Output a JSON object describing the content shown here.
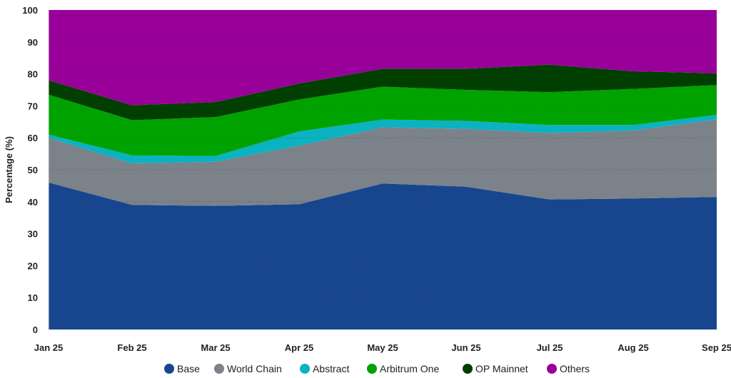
{
  "chart_data": {
    "type": "area",
    "stacked": true,
    "title": "",
    "xlabel": "",
    "ylabel": "Percentage (%)",
    "ylim": [
      0,
      100
    ],
    "yticks": [
      "0",
      "10",
      "20",
      "30",
      "40",
      "50",
      "60",
      "70",
      "80",
      "90",
      "100"
    ],
    "categories": [
      "Jan 25",
      "Feb 25",
      "Mar 25",
      "Apr 25",
      "May 25",
      "Jun 25",
      "Jul 25",
      "Aug 25",
      "Sep 25"
    ],
    "grid": true,
    "legend_position": "bottom",
    "series": [
      {
        "name": "Base",
        "color": "#17468f",
        "values": [
          46,
          39,
          38.7,
          39.2,
          45.7,
          44.7,
          40.7,
          41,
          41.5
        ]
      },
      {
        "name": "World Chain",
        "color": "#7b8289",
        "values": [
          14,
          13,
          13.8,
          18.3,
          17.6,
          18.1,
          20.8,
          21.3,
          24.3
        ]
      },
      {
        "name": "Abstract",
        "color": "#0ab2c2",
        "values": [
          1,
          2.5,
          1.8,
          4.5,
          2.4,
          2.5,
          2.5,
          1.7,
          1.4
        ]
      },
      {
        "name": "Arbitrum One",
        "color": "#00a200",
        "values": [
          12.5,
          11,
          12.2,
          10,
          10.3,
          9.7,
          10.3,
          11.3,
          9.3
        ]
      },
      {
        "name": "OP Mainnet",
        "color": "#003f00",
        "values": [
          4.5,
          4.7,
          4.7,
          5,
          5.6,
          6.6,
          8.6,
          5.5,
          3.7
        ]
      },
      {
        "name": "Others",
        "color": "#990099",
        "values": [
          22,
          29.8,
          28.8,
          23,
          18.4,
          18.4,
          17.1,
          19.2,
          19.8
        ]
      }
    ]
  }
}
